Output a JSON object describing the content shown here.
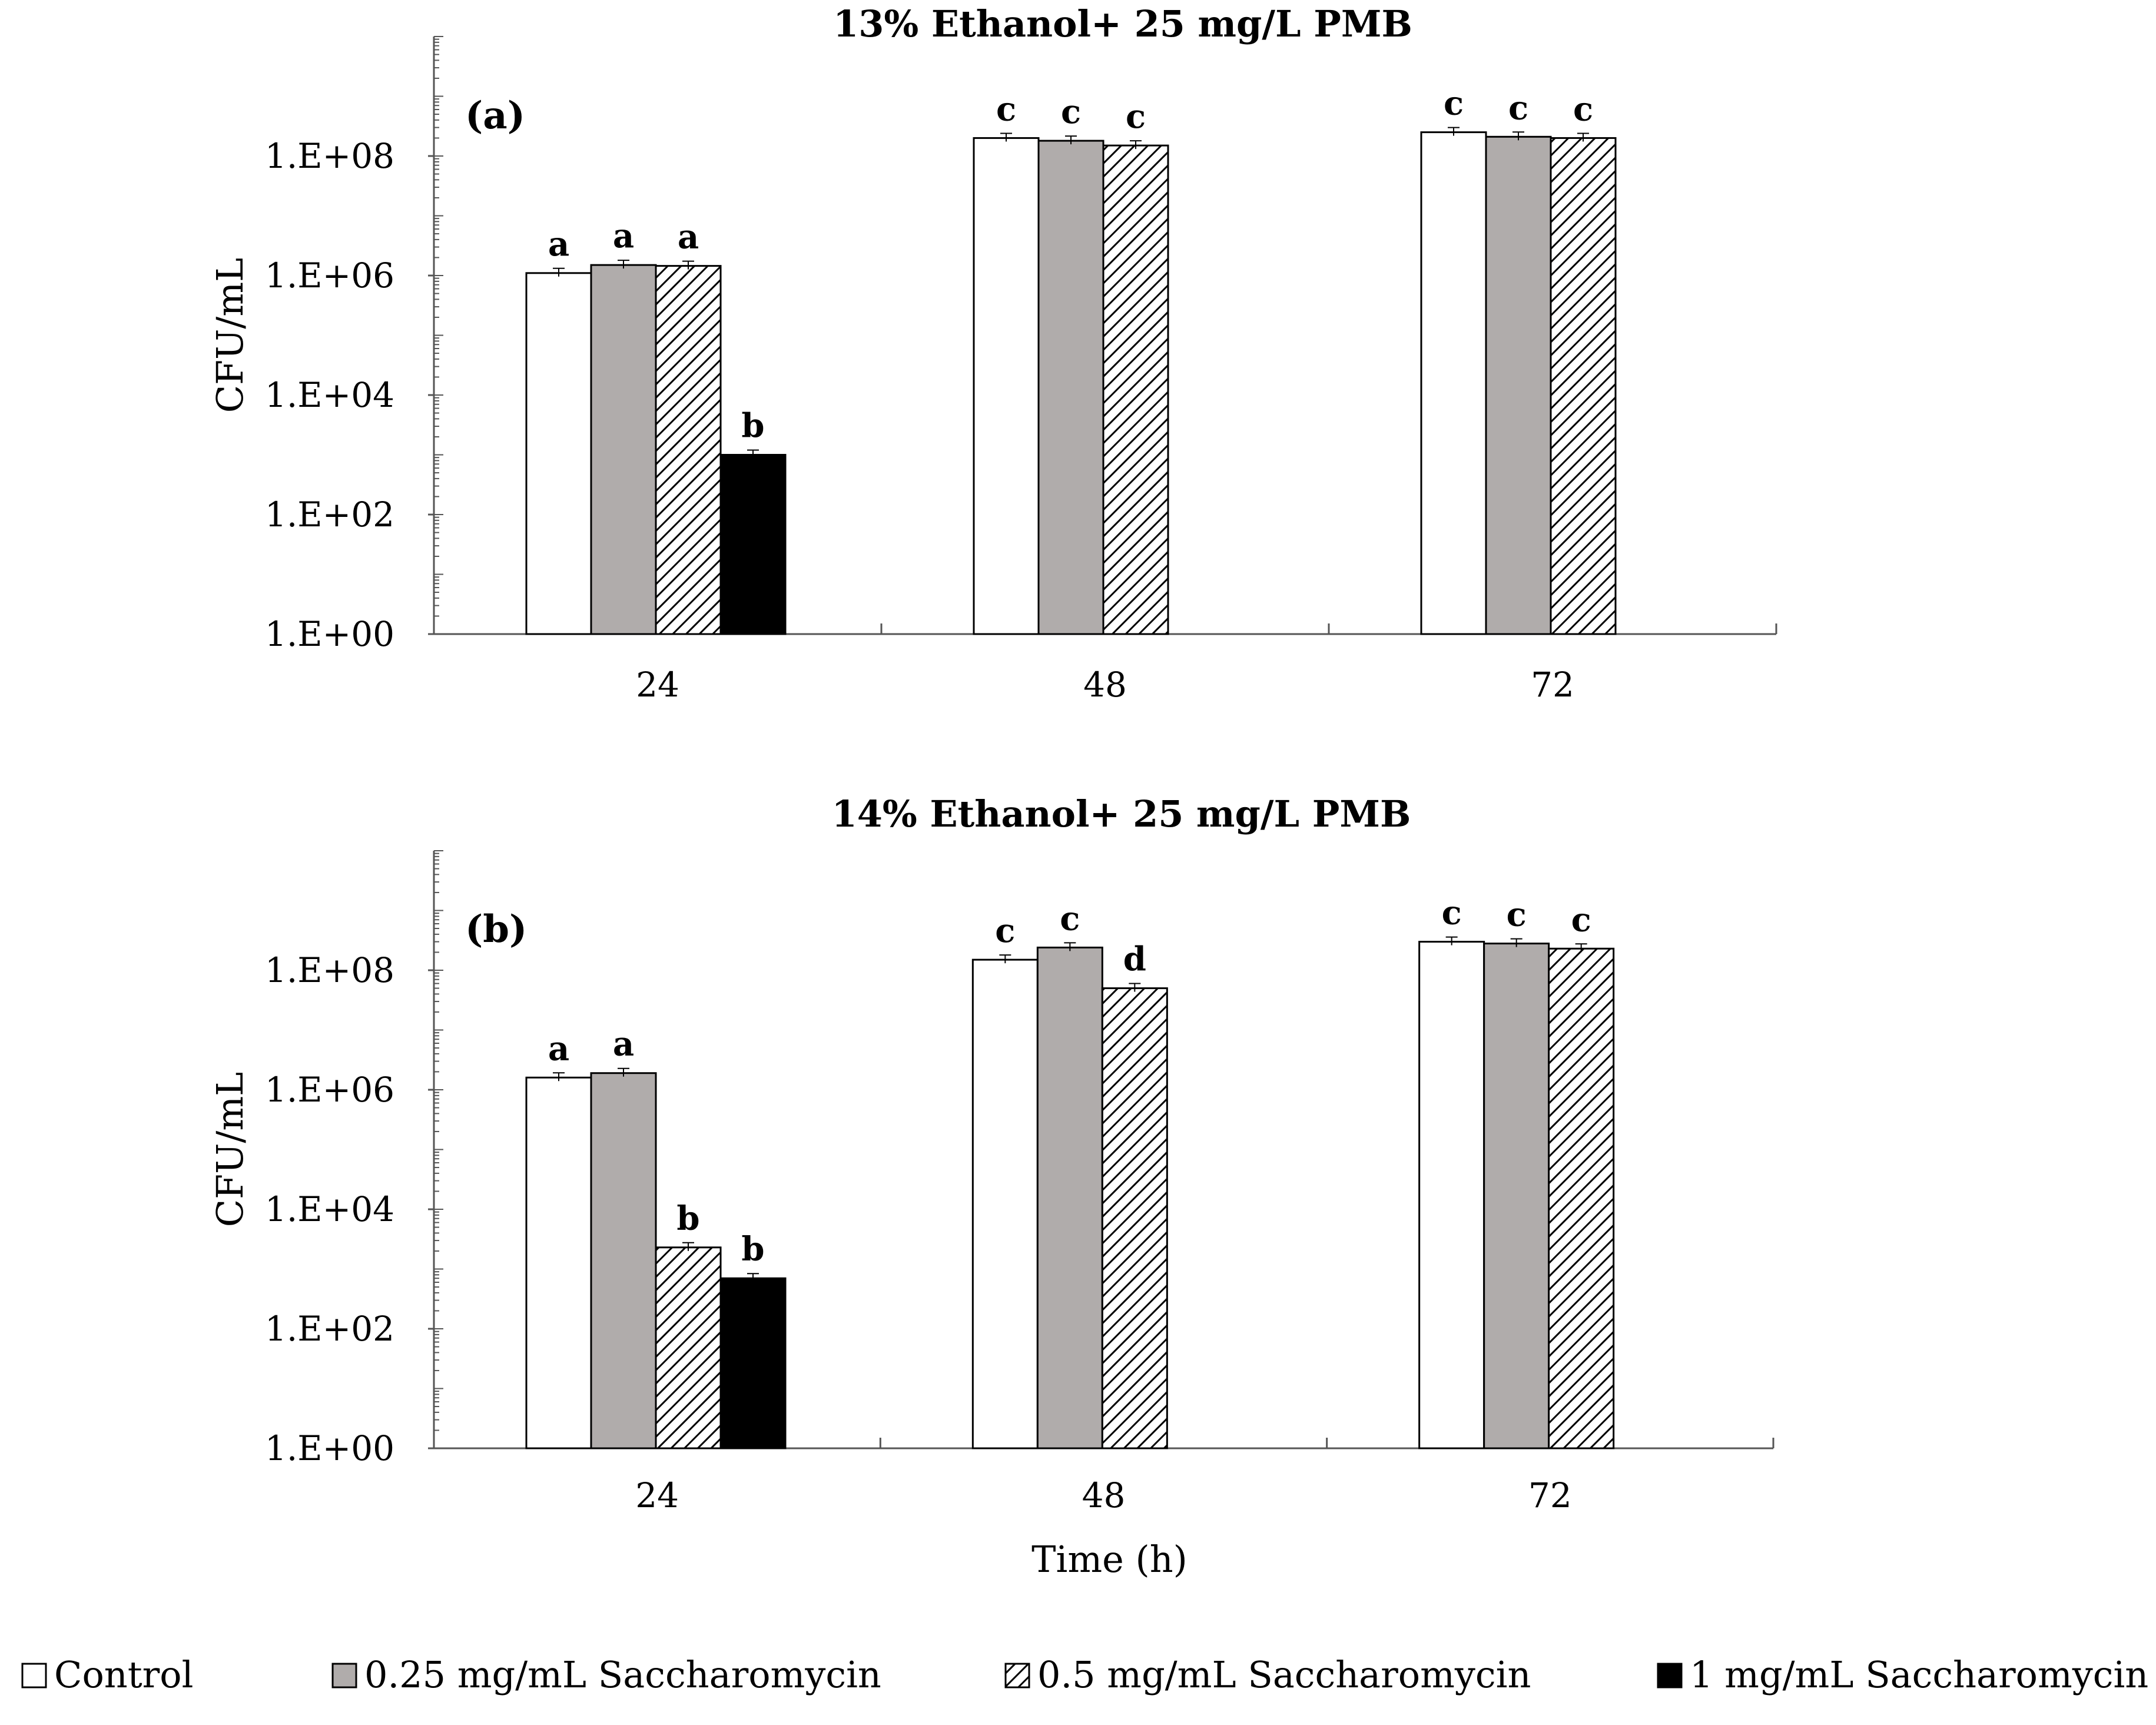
{
  "legend": [
    {
      "name": "Control",
      "style": "white"
    },
    {
      "name": "0.25 mg/mL Saccharomycin",
      "style": "gray"
    },
    {
      "name": "0.5 mg/mL Saccharomycin",
      "style": "hatch"
    },
    {
      "name": "1 mg/mL  Saccharomycin",
      "style": "black"
    }
  ],
  "colors": {
    "gray": "#b0acab",
    "black": "#000000",
    "white": "#ffffff",
    "axis": "#555555"
  },
  "chart_data": [
    {
      "type": "bar",
      "title": "13% Ethanol+ 25 mg/L PMB",
      "panel_label": "(a)",
      "xlabel": "",
      "ylabel": "CFU/mL",
      "yscale": "log10",
      "ylim": [
        1,
        10000000000
      ],
      "yticks": [
        "1.E+00",
        "1.E+02",
        "1.E+04",
        "1.E+06",
        "1.E+08"
      ],
      "categories": [
        "24",
        "48",
        "72"
      ],
      "series": [
        {
          "name": "Control",
          "values": [
            1100000,
            200000000,
            250000000
          ],
          "letters": [
            "a",
            "c",
            "c"
          ]
        },
        {
          "name": "0.25 mg/mL Saccharomycin",
          "values": [
            1500000,
            180000000,
            210000000
          ],
          "letters": [
            "a",
            "c",
            "c"
          ]
        },
        {
          "name": "0.5 mg/mL Saccharomycin",
          "values": [
            1450000,
            150000000,
            200000000
          ],
          "letters": [
            "a",
            "c",
            "c"
          ]
        },
        {
          "name": "1 mg/mL  Saccharomycin",
          "values": [
            1000,
            null,
            null
          ],
          "letters": [
            "b",
            "",
            ""
          ]
        }
      ]
    },
    {
      "type": "bar",
      "title": "14% Ethanol+ 25 mg/L PMB",
      "panel_label": "(b)",
      "xlabel": "Time (h)",
      "ylabel": "CFU/mL",
      "yscale": "log10",
      "ylim": [
        1,
        10000000000
      ],
      "yticks": [
        "1.E+00",
        "1.E+02",
        "1.E+04",
        "1.E+06",
        "1.E+08"
      ],
      "categories": [
        "24",
        "48",
        "72"
      ],
      "series": [
        {
          "name": "Control",
          "values": [
            1600000,
            150000000,
            300000000
          ],
          "letters": [
            "a",
            "c",
            "c"
          ]
        },
        {
          "name": "0.25 mg/mL Saccharomycin",
          "values": [
            1900000,
            240000000,
            280000000
          ],
          "letters": [
            "a",
            "c",
            "c"
          ]
        },
        {
          "name": "0.5 mg/mL Saccharomycin",
          "values": [
            2300,
            50000000,
            230000000
          ],
          "letters": [
            "b",
            "d",
            "c"
          ]
        },
        {
          "name": "1 mg/mL  Saccharomycin",
          "values": [
            700,
            null,
            null
          ],
          "letters": [
            "b",
            "",
            ""
          ]
        }
      ]
    }
  ]
}
